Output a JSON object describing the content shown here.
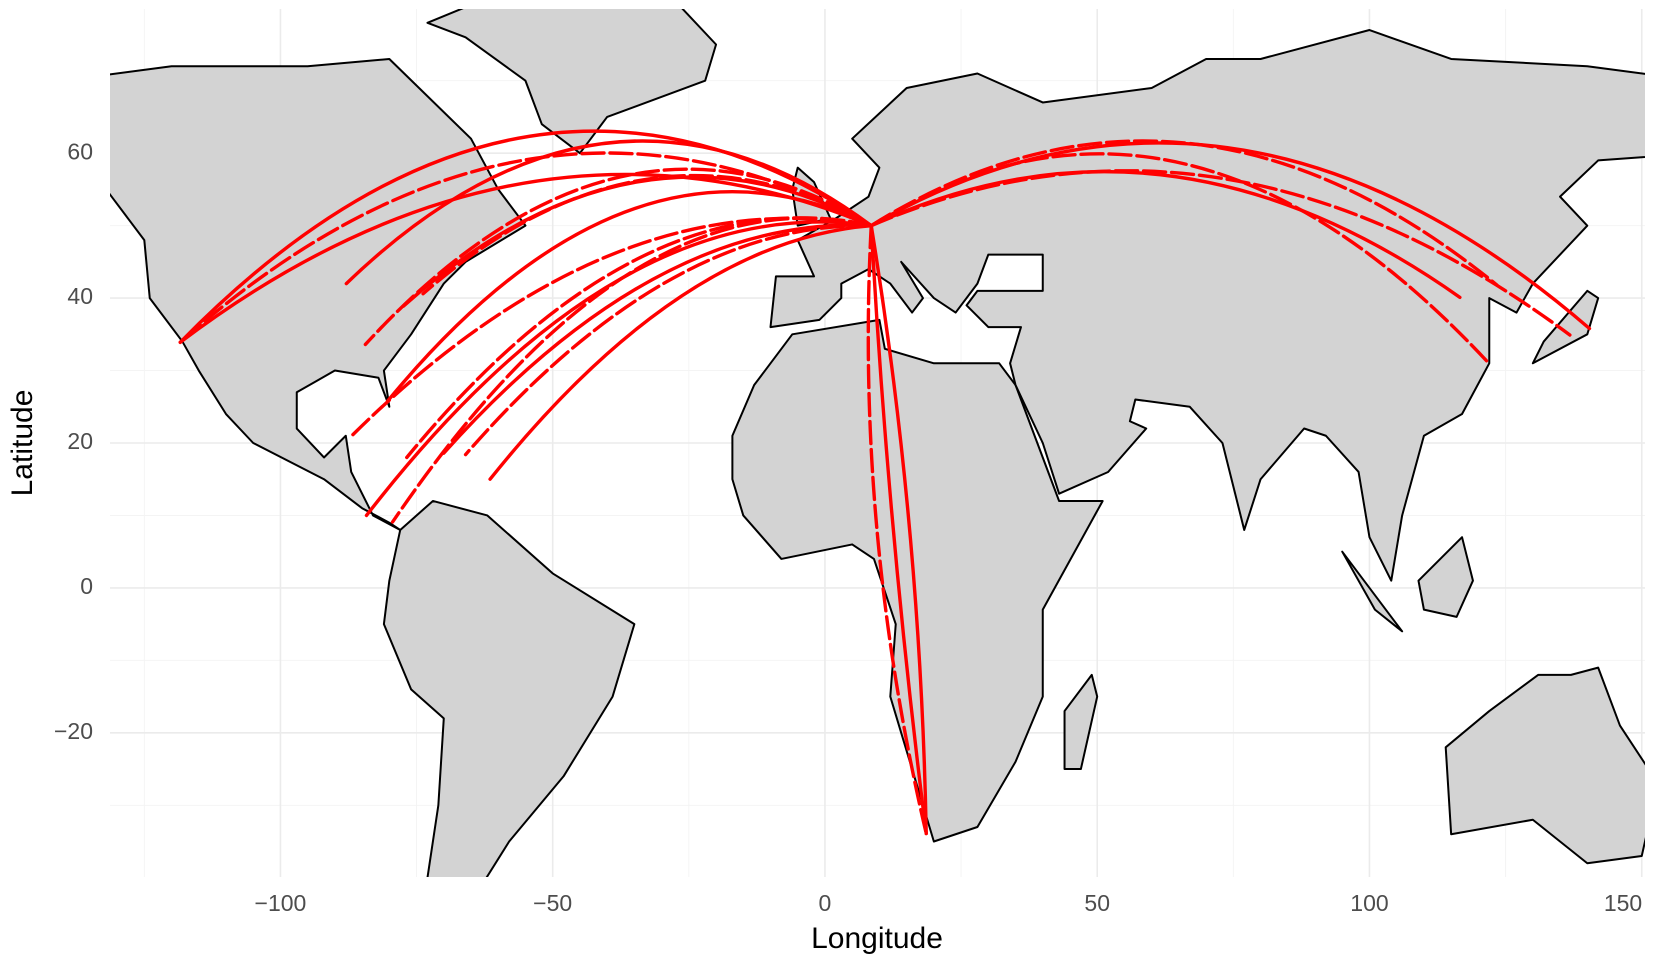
{
  "chart_data": {
    "type": "map",
    "x_label": "Longitude",
    "y_label": "Latitude",
    "xlim": [
      -131.3,
      150.6
    ],
    "ylim": [
      -39.9,
      79.9
    ],
    "xticks": [
      {
        "value": -100,
        "label": "−100"
      },
      {
        "value": -50,
        "label": "−50"
      },
      0,
      50,
      100,
      150
    ],
    "yticks": [
      {
        "value": -20,
        "label": "−20"
      },
      0,
      20,
      40,
      60
    ],
    "grid": true,
    "color": "#ff0000",
    "routes": [
      {
        "x": [
          8.5,
          -118.4
        ],
        "y": [
          50,
          33.9
        ]
      },
      {
        "x": [
          8.5,
          -118.4
        ],
        "y": [
          50,
          33.9
        ]
      },
      {
        "x": [
          8.5,
          -118.4
        ],
        "y": [
          50,
          33.9
        ]
      },
      {
        "x": [
          8.5,
          -86.9
        ],
        "y": [
          50,
          21.0
        ]
      },
      {
        "x": [
          8.5,
          -84.2
        ],
        "y": [
          50,
          10.0
        ]
      },
      {
        "x": [
          8.5,
          -79.4
        ],
        "y": [
          50,
          9.1
        ]
      },
      {
        "x": [
          8.5,
          -70.0
        ],
        "y": [
          50,
          18.6
        ]
      },
      {
        "x": [
          8.5,
          -73.8
        ],
        "y": [
          50,
          40.6
        ]
      },
      {
        "x": [
          8.5,
          -80.3
        ],
        "y": [
          50,
          25.8
        ]
      },
      {
        "x": [
          8.5,
          -66.0
        ],
        "y": [
          50,
          18.4
        ]
      },
      {
        "x": [
          8.5,
          -77.4
        ],
        "y": [
          50,
          38.9
        ]
      },
      {
        "x": [
          8.5,
          -84.4
        ],
        "y": [
          50,
          33.6
        ]
      },
      {
        "x": [
          8.5,
          -61.5
        ],
        "y": [
          50,
          15.0
        ]
      },
      {
        "x": [
          8.5,
          -76.8
        ],
        "y": [
          50,
          18.0
        ]
      },
      {
        "x": [
          8.5,
          -87.9
        ],
        "y": [
          50,
          42.0
        ]
      },
      {
        "x": [
          8.5,
          136.8
        ],
        "y": [
          50,
          34.9
        ]
      },
      {
        "x": [
          8.5,
          140.4
        ],
        "y": [
          50,
          35.8
        ]
      },
      {
        "x": [
          8.5,
          121.8
        ],
        "y": [
          50,
          31.1
        ]
      },
      {
        "x": [
          8.5,
          116.6
        ],
        "y": [
          50,
          40.1
        ]
      },
      {
        "x": [
          8.5,
          123.4
        ],
        "y": [
          50,
          41.8
        ]
      },
      {
        "x": [
          8.5,
          18.6
        ],
        "y": [
          50,
          -33.9
        ]
      },
      {
        "x": [
          8.5,
          18.6
        ],
        "y": [
          50,
          -33.9
        ]
      },
      {
        "x": [
          8.5,
          18.6
        ],
        "y": [
          50,
          -33.9
        ]
      }
    ]
  }
}
